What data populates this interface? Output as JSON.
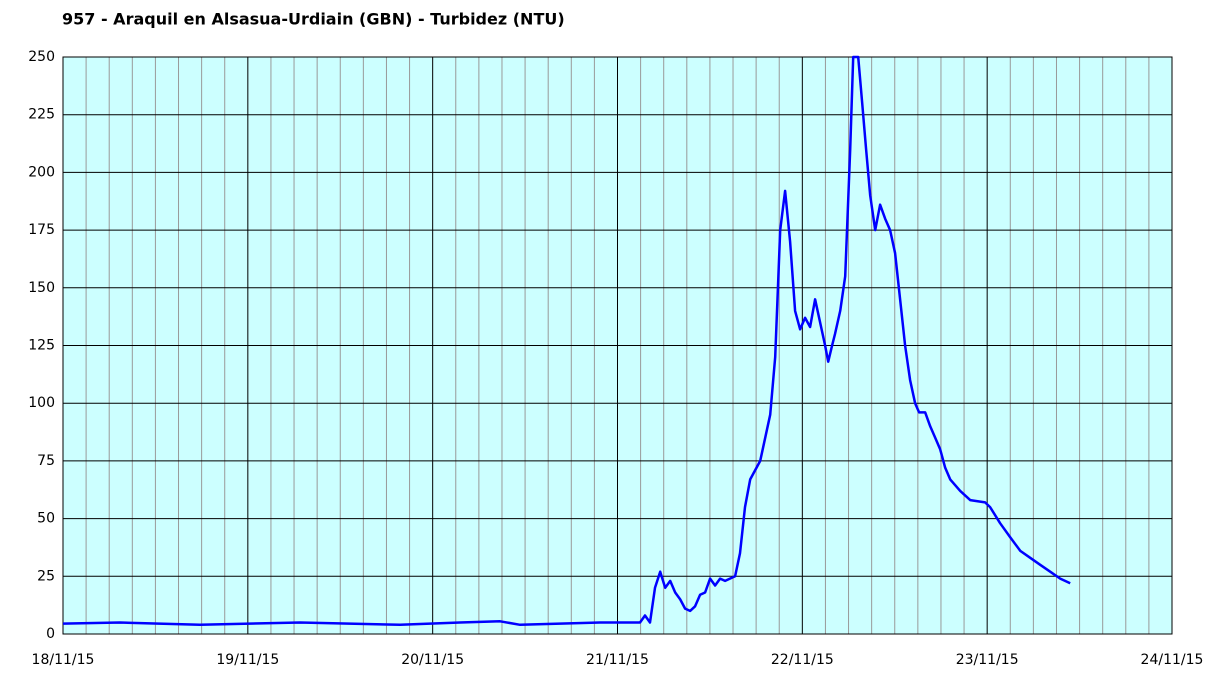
{
  "chart_data": {
    "type": "line",
    "title": "957 - Araquil en Alsasua-Urdiain (GBN) - Turbidez (NTU)",
    "x": [
      0,
      0.308,
      0.741,
      1.282,
      1.824,
      2.148,
      2.365,
      2.473,
      2.906,
      3.122,
      3.149,
      3.176,
      3.203,
      3.231,
      3.258,
      3.285,
      3.312,
      3.339,
      3.366,
      3.393,
      3.42,
      3.447,
      3.474,
      3.501,
      3.528,
      3.555,
      3.582,
      3.636,
      3.663,
      3.69,
      3.718,
      3.772,
      3.826,
      3.853,
      3.88,
      3.907,
      3.934,
      3.961,
      3.988,
      4.015,
      4.042,
      4.069,
      4.096,
      4.123,
      4.14,
      4.161,
      4.177,
      4.205,
      4.232,
      4.259,
      4.275,
      4.302,
      4.324,
      4.345,
      4.367,
      4.394,
      4.421,
      4.448,
      4.475,
      4.502,
      4.529,
      4.556,
      4.583,
      4.61,
      4.632,
      4.665,
      4.692,
      4.719,
      4.746,
      4.773,
      4.8,
      4.854,
      4.908,
      4.989,
      5.016,
      5.07,
      5.124,
      5.179,
      5.233,
      5.287,
      5.341,
      5.395,
      5.449
    ],
    "series": [
      {
        "color": "#0000ff",
        "values": [
          4.5,
          5,
          4,
          5,
          4,
          5,
          5.5,
          4,
          5,
          5,
          8,
          5,
          20,
          27,
          20,
          23,
          18,
          15,
          11,
          10,
          12,
          17,
          18,
          24,
          21,
          24,
          23,
          25,
          35,
          55,
          67,
          75,
          95,
          120,
          175,
          192,
          170,
          140,
          132,
          137,
          133,
          145,
          135,
          125,
          118,
          125,
          130,
          140,
          155,
          210,
          250,
          250,
          230,
          210,
          190,
          175,
          186,
          180,
          175,
          165,
          145,
          125,
          110,
          100,
          96,
          96,
          90,
          85,
          80,
          72,
          67,
          62,
          58,
          57,
          55,
          48,
          42,
          36,
          33,
          30,
          27,
          24,
          22
        ]
      }
    ],
    "xlim": [
      0,
      6
    ],
    "xticks": [
      {
        "value": 0,
        "label": "18/11/15"
      },
      {
        "value": 1,
        "label": "19/11/15"
      },
      {
        "value": 2,
        "label": "20/11/15"
      },
      {
        "value": 3,
        "label": "21/11/15"
      },
      {
        "value": 4,
        "label": "22/11/15"
      },
      {
        "value": 5,
        "label": "23/11/15"
      },
      {
        "value": 6,
        "label": "24/11/15"
      }
    ],
    "ylim": [
      0,
      250
    ],
    "yticks": [
      0,
      25,
      50,
      75,
      100,
      125,
      150,
      175,
      200,
      225,
      250
    ],
    "grid": true,
    "background": "#ccffff"
  }
}
